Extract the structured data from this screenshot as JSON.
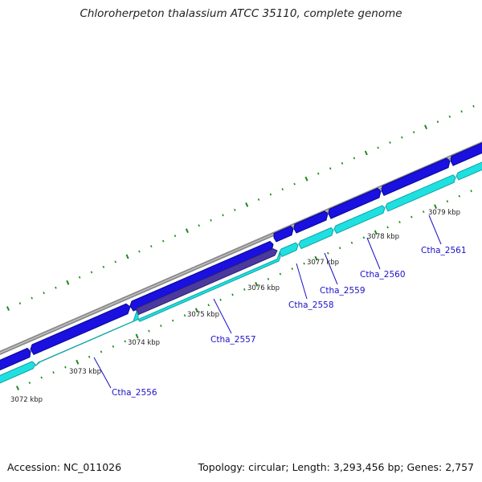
{
  "header": {
    "title": "Chloroherpeton thalassium ATCC 35110, complete genome"
  },
  "footer": {
    "accession": "Accession: NC_011026",
    "summary": "Topology: circular; Length: 3,293,456 bp; Genes: 2,757"
  },
  "colors": {
    "backbone": "#8a8a8a",
    "forward_gene": "#1a10e0",
    "reverse_gene": "#1ee0e0",
    "highlight_gene": "#4a3aa0",
    "tick": "#1a8a1a",
    "gene_label": "#1a10c8",
    "axis_label": "#222222"
  },
  "map": {
    "kbp_labels": [
      "3072 kbp",
      "3073 kbp",
      "3074 kbp",
      "3075 kbp",
      "3076 kbp",
      "3077 kbp",
      "3078 kbp",
      "3079 kbp"
    ],
    "gene_labels": [
      "Ctha_2556",
      "Ctha_2557",
      "Ctha_2558",
      "Ctha_2559",
      "Ctha_2560",
      "Ctha_2561"
    ]
  }
}
